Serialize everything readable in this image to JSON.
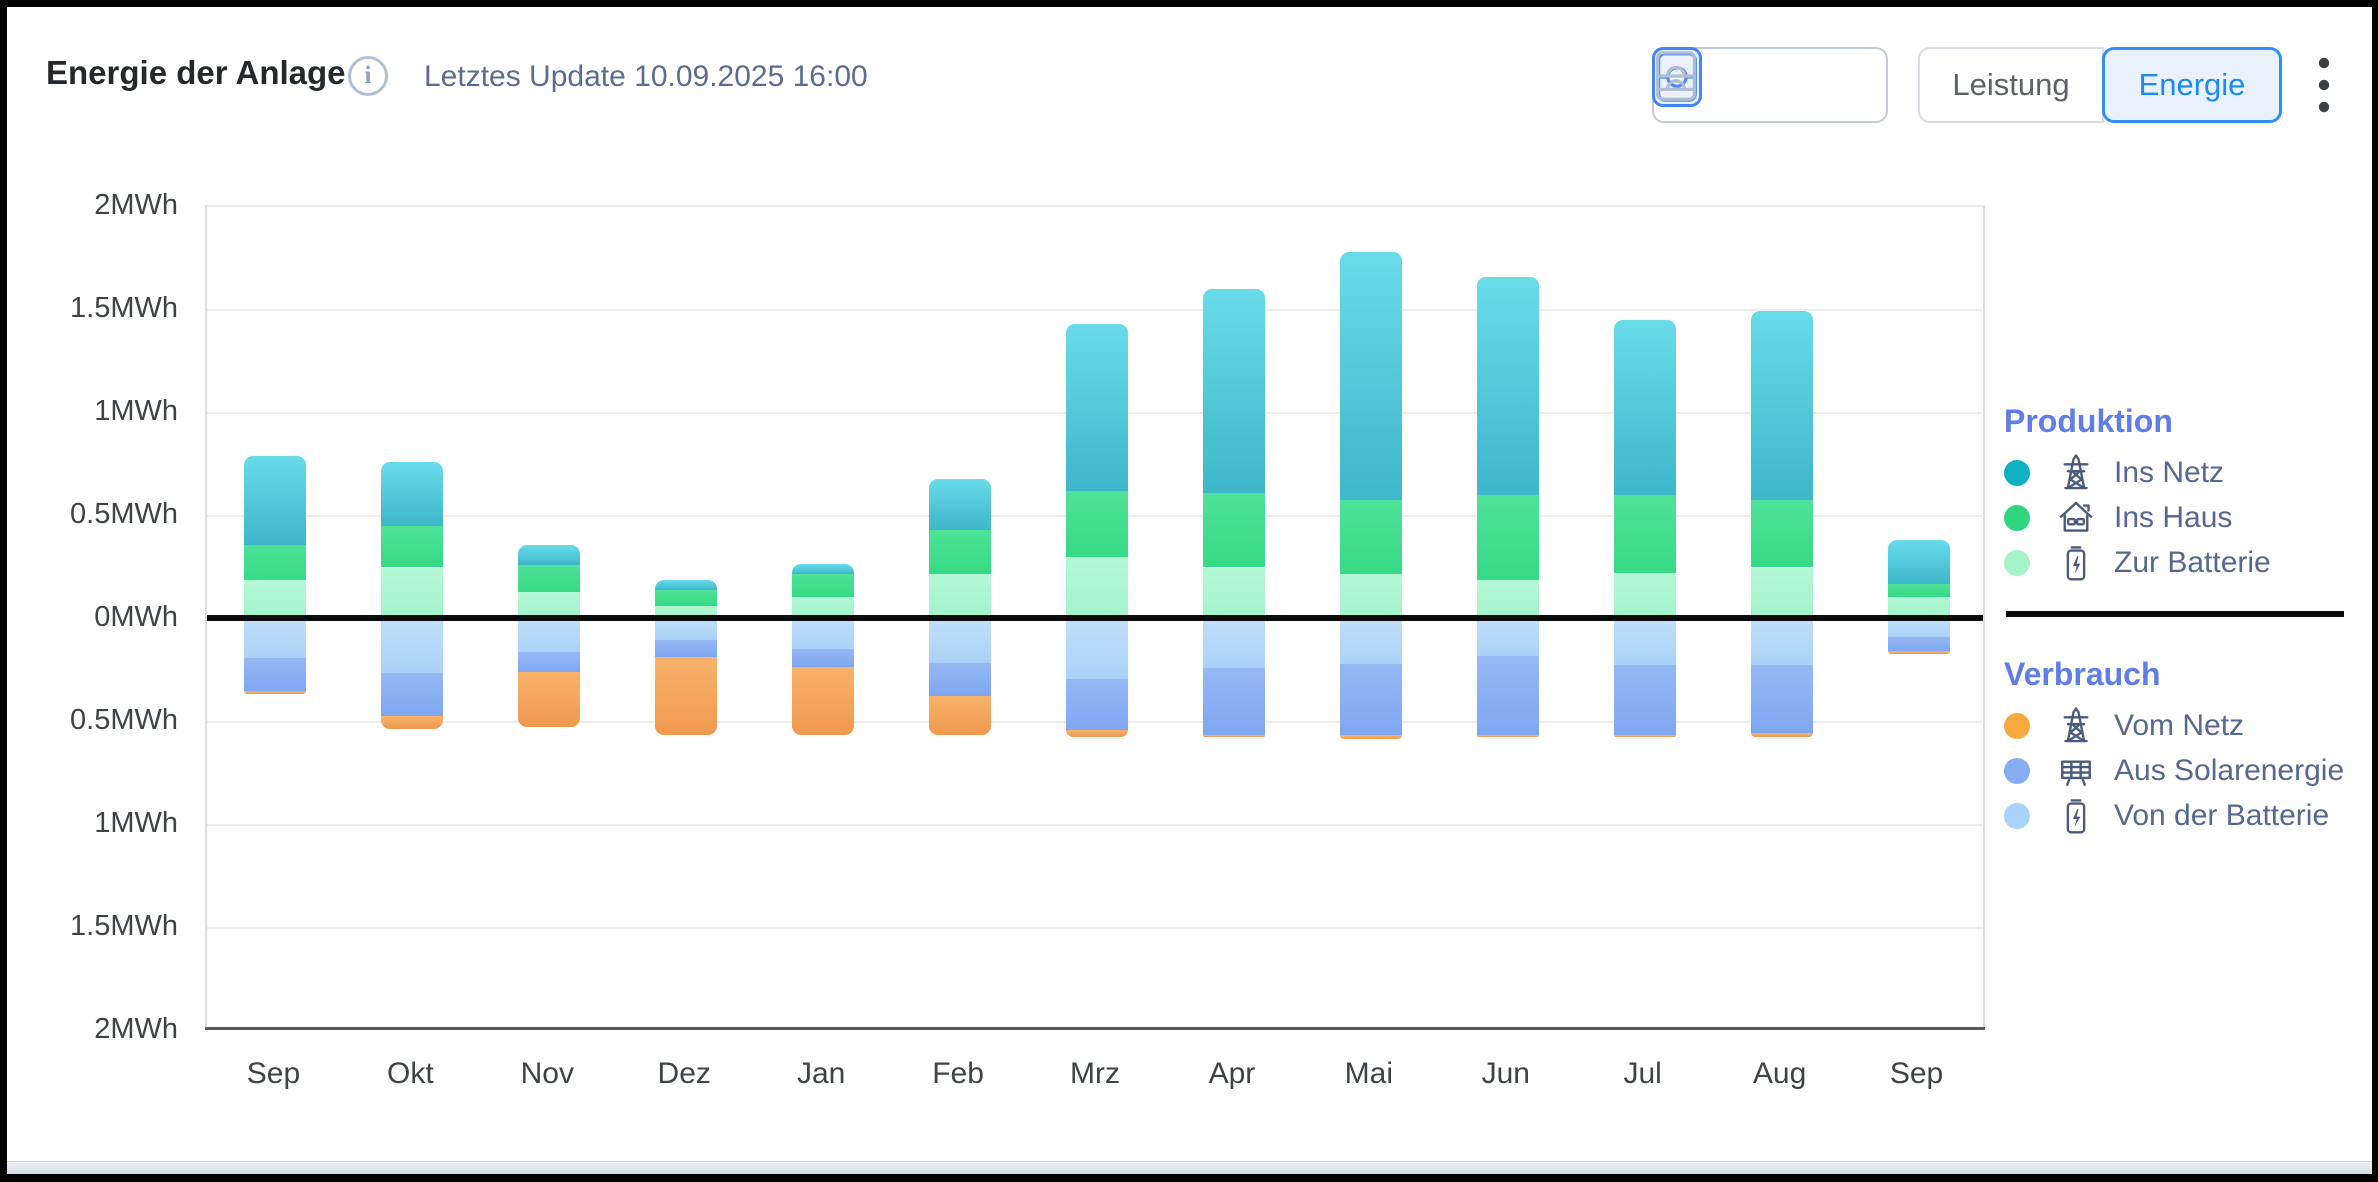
{
  "header": {
    "title": "Energie der Anlage",
    "info_glyph": "i",
    "last_update": "Letztes Update 10.09.2025 16:00",
    "chart_mode_toggle": {
      "options": [
        {
          "icon": "mirror-chart-icon",
          "selected": true
        },
        {
          "icon": "stacked-chart-icon",
          "selected": false
        }
      ]
    },
    "unit_toggle": {
      "options": [
        {
          "label": "Leistung",
          "selected": false
        },
        {
          "label": "Energie",
          "selected": true
        }
      ]
    },
    "menu_icon": "kebab-menu-icon",
    "accent_blue": "#1b8af5"
  },
  "legend": {
    "produktion": {
      "title": "Produktion",
      "items": [
        {
          "label": "Ins Netz",
          "icon": "power-pylon-icon",
          "color": "#10b0c3"
        },
        {
          "label": "Ins Haus",
          "icon": "house-icon",
          "color": "#2fd57f"
        },
        {
          "label": "Zur Batterie",
          "icon": "battery-icon",
          "color": "#a6f3ca"
        }
      ]
    },
    "verbrauch": {
      "title": "Verbrauch",
      "items": [
        {
          "label": "Vom Netz",
          "icon": "power-pylon-icon",
          "color": "#f6a93e"
        },
        {
          "label": "Aus Solarenergie",
          "icon": "solar-panel-icon",
          "color": "#86acf2"
        },
        {
          "label": "Von der Batterie",
          "icon": "battery-icon",
          "color": "#a9d3f8"
        }
      ]
    }
  },
  "chart_data": {
    "type": "bar",
    "variant": "stacked-mirrored",
    "title": "Energie der Anlage",
    "unit": "MWh",
    "ylim": [
      -2,
      2
    ],
    "ytick_step": 0.5,
    "ytick_labels": [
      "2MWh",
      "1.5MWh",
      "1MWh",
      "0.5MWh",
      "0MWh",
      "0.5MWh",
      "1MWh",
      "1.5MWh",
      "2MWh"
    ],
    "categories": [
      "Sep",
      "Okt",
      "Nov",
      "Dez",
      "Jan",
      "Feb",
      "Mrz",
      "Apr",
      "Mai",
      "Jun",
      "Jul",
      "Aug",
      "Sep"
    ],
    "grid": true,
    "legend_position": "right",
    "stack_up": [
      "zur_batterie",
      "ins_haus",
      "ins_netz"
    ],
    "stack_down": [
      "von_der_batterie",
      "aus_solarenergie",
      "vom_netz"
    ],
    "series": [
      {
        "key": "ins_netz",
        "name": "Ins Netz",
        "group": "Produktion",
        "color_top": "#68dbe9",
        "color_bottom": "#3eb7ca",
        "values": [
          0.43,
          0.31,
          0.1,
          0.05,
          0.045,
          0.25,
          0.81,
          0.99,
          1.2,
          1.06,
          0.85,
          0.915,
          0.215
        ]
      },
      {
        "key": "ins_haus",
        "name": "Ins Haus",
        "group": "Produktion",
        "color_top": "#4ee299",
        "color_bottom": "#36da85",
        "values": [
          0.17,
          0.2,
          0.13,
          0.075,
          0.115,
          0.21,
          0.32,
          0.36,
          0.36,
          0.41,
          0.375,
          0.33,
          0.065
        ]
      },
      {
        "key": "zur_batterie",
        "name": "Zur Batterie",
        "group": "Produktion",
        "color_top": "#b4f8d6",
        "color_bottom": "#a2f3ca",
        "values": [
          0.19,
          0.25,
          0.13,
          0.065,
          0.105,
          0.22,
          0.3,
          0.25,
          0.22,
          0.19,
          0.225,
          0.25,
          0.105
        ]
      },
      {
        "key": "von_der_batterie",
        "name": "Von der Batterie",
        "group": "Verbrauch",
        "color_top": "#c0dffa",
        "color_bottom": "#aad2f8",
        "values": [
          0.19,
          0.26,
          0.16,
          0.1,
          0.145,
          0.215,
          0.29,
          0.24,
          0.22,
          0.18,
          0.225,
          0.225,
          0.085
        ]
      },
      {
        "key": "aus_solarenergie",
        "name": "Aus Solarenergie",
        "group": "Verbrauch",
        "color_top": "#95b8f5",
        "color_bottom": "#7fa7f1",
        "values": [
          0.16,
          0.21,
          0.095,
          0.085,
          0.09,
          0.16,
          0.25,
          0.325,
          0.345,
          0.385,
          0.34,
          0.33,
          0.07
        ]
      },
      {
        "key": "vom_netz",
        "name": "Vom Netz",
        "group": "Verbrauch",
        "color_top": "#f8b26a",
        "color_bottom": "#f0994f",
        "values": [
          0.015,
          0.065,
          0.27,
          0.38,
          0.33,
          0.19,
          0.035,
          0.01,
          0.02,
          0.01,
          0.01,
          0.02,
          0.015
        ]
      }
    ]
  }
}
